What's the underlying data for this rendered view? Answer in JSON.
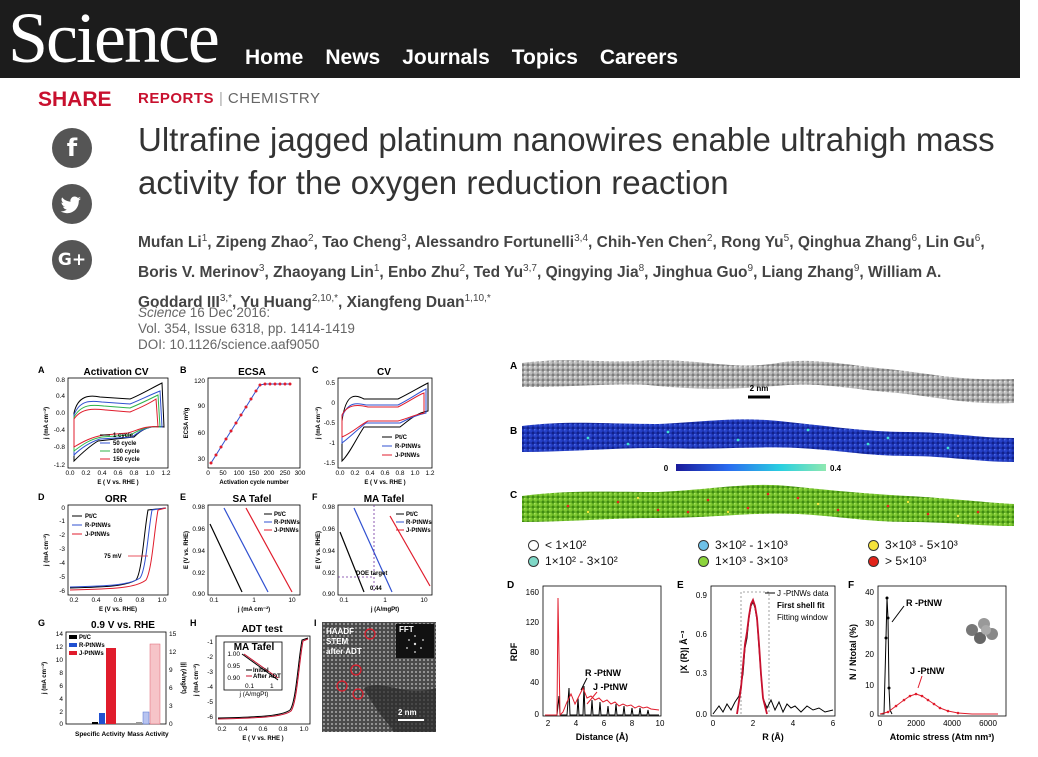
{
  "brand": {
    "logo": "Science"
  },
  "nav": {
    "items": [
      "Home",
      "News",
      "Journals",
      "Topics",
      "Careers"
    ]
  },
  "share": {
    "label": "SHARE",
    "facebook_glyph": "f",
    "twitter_glyph": "t",
    "google_glyph": "G+"
  },
  "article": {
    "section_type": "REPORTS",
    "section_subject": "CHEMISTRY",
    "title": "Ultrafine jagged platinum nanowires enable ultrahigh mass activity for the oxygen reduction reaction",
    "authors": [
      {
        "name": "Mufan Li",
        "aff": "1"
      },
      {
        "name": "Zipeng Zhao",
        "aff": "2"
      },
      {
        "name": "Tao Cheng",
        "aff": "3"
      },
      {
        "name": "Alessandro Fortunelli",
        "aff": "3,4"
      },
      {
        "name": "Chih-Yen Chen",
        "aff": "2"
      },
      {
        "name": "Rong Yu",
        "aff": "5"
      },
      {
        "name": "Qinghua Zhang",
        "aff": "6"
      },
      {
        "name": "Lin Gu",
        "aff": "6"
      },
      {
        "name": "Boris V. Merinov",
        "aff": "3"
      },
      {
        "name": "Zhaoyang Lin",
        "aff": "1"
      },
      {
        "name": "Enbo Zhu",
        "aff": "2"
      },
      {
        "name": "Ted Yu",
        "aff": "3,7"
      },
      {
        "name": "Qingying Jia",
        "aff": "8"
      },
      {
        "name": "Jinghua Guo",
        "aff": "9"
      },
      {
        "name": "Liang Zhang",
        "aff": "9"
      },
      {
        "name": "William A. Goddard III",
        "aff": "3,*"
      },
      {
        "name": "Yu Huang",
        "aff": "2,10,*"
      },
      {
        "name": "Xiangfeng Duan",
        "aff": "1,10,*"
      }
    ],
    "journal": "Science",
    "date": "16 Dec 2016:",
    "volume": "Vol. 354, Issue 6318, pp. 1414-1419",
    "doi": "DOI: 10.1126/science.aaf9050"
  },
  "figure1": {
    "A": {
      "label": "A",
      "title": "Activation CV",
      "ylabel": "j (mA cm⁻²)",
      "xlabel": "E ( V vs. RHE )",
      "legend": [
        "1 cycle",
        "50 cycle",
        "100 cycle",
        "150 cycle"
      ],
      "xticks": [
        "0.0",
        "0.2",
        "0.4",
        "0.6",
        "0.8",
        "1.0",
        "1.2"
      ],
      "yticks": [
        "0.8",
        "0.4",
        "0.0",
        "-0.4",
        "-0.8",
        "-1.2"
      ]
    },
    "B": {
      "label": "B",
      "title": "ECSA",
      "ylabel": "ECSA m²/g",
      "xlabel": "Activation cycle number",
      "xticks": [
        "0",
        "50",
        "100",
        "150",
        "200",
        "250",
        "300"
      ],
      "yticks": [
        "120",
        "90",
        "60",
        "30"
      ]
    },
    "C": {
      "label": "C",
      "title": "CV",
      "ylabel": "j (mA cm⁻²)",
      "xlabel": "E ( V vs. RHE )",
      "legend": [
        "Pt/C",
        "R-PtNWs",
        "J-PtNWs"
      ],
      "xticks": [
        "0.0",
        "0.2",
        "0.4",
        "0.6",
        "0.8",
        "1.0",
        "1.2"
      ],
      "yticks": [
        "0.5",
        "0",
        "-0.5",
        "-1",
        "-1.5"
      ]
    },
    "D": {
      "label": "D",
      "title": "ORR",
      "ylabel": "j (mA cm⁻²)",
      "xlabel": "E (V vs. RHE)",
      "legend": [
        "Pt/C",
        "R-PtNWs",
        "J-PtNWs"
      ],
      "annotation": "75 mV",
      "xticks": [
        "0.2",
        "0.4",
        "0.6",
        "0.8",
        "1.0"
      ],
      "yticks": [
        "0",
        "-1",
        "-2",
        "-3",
        "-4",
        "-5",
        "-6"
      ]
    },
    "E": {
      "label": "E",
      "title": "SA Tafel",
      "ylabel": "E (V vs. RHE)",
      "xlabel": "j (mA cm⁻²)",
      "legend": [
        "Pt/C",
        "R-PtNWs",
        "J-PtNWs"
      ],
      "xticks": [
        "0.1",
        "1",
        "10"
      ],
      "yticks": [
        "0.98",
        "0.96",
        "0.94",
        "0.92",
        "0.90"
      ]
    },
    "F": {
      "label": "F",
      "title": "MA Tafel",
      "ylabel": "E (V vs. RHE)",
      "xlabel": "j (A/mgPt)",
      "legend": [
        "Pt/C",
        "R-PtNWs",
        "J-PtNWs"
      ],
      "annotation": "DOE target",
      "marker": "0.44",
      "xticks": [
        "0.1",
        "1",
        "10"
      ],
      "yticks": [
        "0.98",
        "0.96",
        "0.94",
        "0.92",
        "0.90"
      ]
    },
    "G": {
      "label": "G",
      "title": "0.9 V vs. RHE",
      "ylabel_left": "j (mA cm⁻²)",
      "ylabel_right": "|j| (A/mgPt)",
      "legend": [
        "Pt/C",
        "R-PtNWs",
        "J-PtNWs"
      ],
      "categories": [
        "Specific Activity",
        "Mass Activity"
      ],
      "yticks_left": [
        "14",
        "12",
        "10",
        "8",
        "6",
        "4",
        "2",
        "0"
      ],
      "yticks_right": [
        "15",
        "12",
        "9",
        "6",
        "3",
        "0"
      ]
    },
    "H": {
      "label": "H",
      "title": "ADT test",
      "inset_title": "MA Tafel",
      "ylabel": "j (mA cm⁻²)",
      "xlabel": "E ( V vs. RHE )",
      "legend": [
        "Initial",
        "After ADT"
      ],
      "xticks": [
        "0.2",
        "0.4",
        "0.6",
        "0.8",
        "1.0"
      ],
      "yticks": [
        "-1",
        "-2",
        "-3",
        "-4",
        "-5",
        "-6"
      ],
      "inset_yticks": [
        "1.00",
        "0.95",
        "0.90"
      ],
      "inset_xticks": [
        "0.1",
        "1"
      ],
      "inset_xlabel": "j (A/mgPt)"
    },
    "I": {
      "label": "I",
      "stem_text": [
        "HAADF",
        "STEM",
        "after ADT"
      ],
      "fft": "FFT",
      "scale": "2 nm"
    }
  },
  "figure2": {
    "A": {
      "label": "A",
      "scale": "2 nm"
    },
    "B": {
      "label": "B",
      "colorbar_min": "0",
      "colorbar_max": "0.4"
    },
    "C": {
      "label": "C"
    },
    "stress_legend": [
      {
        "text": "< 1×10²",
        "color": "#ffffff"
      },
      {
        "text": "1×10² - 3×10²",
        "color": "#7fd8c7"
      },
      {
        "text": "3×10² - 1×10³",
        "color": "#6ec1e8"
      },
      {
        "text": "1×10³ - 3×10³",
        "color": "#8cd43c"
      },
      {
        "text": "3×10³ - 5×10³",
        "color": "#f5e23a"
      },
      {
        "text": "> 5×10³",
        "color": "#e2231a"
      }
    ],
    "D": {
      "label": "D",
      "ylabel": "RDF",
      "xlabel": "Distance (Å)",
      "series": [
        "R -PtNW",
        "J -PtNW"
      ],
      "xticks": [
        "2",
        "4",
        "6",
        "8",
        "10"
      ],
      "yticks": [
        "160",
        "120",
        "80",
        "40",
        "0"
      ]
    },
    "E": {
      "label": "E",
      "ylabel": "|X (R)| Å⁻³",
      "xlabel": "R (Å)",
      "legend": [
        "J -PtNWs data",
        "First shell fit",
        "Fitting window"
      ],
      "xticks": [
        "0",
        "2",
        "4",
        "6"
      ],
      "yticks": [
        "0.9",
        "0.6",
        "0.3",
        "0.0"
      ]
    },
    "F": {
      "label": "F",
      "ylabel": "N / Ntotal (%)",
      "xlabel": "Atomic stress (Atm nm³)",
      "series": [
        "R -PtNW",
        "J -PtNW"
      ],
      "xticks": [
        "0",
        "2000",
        "4000",
        "6000"
      ],
      "yticks": [
        "40",
        "30",
        "20",
        "10",
        "0"
      ]
    }
  }
}
